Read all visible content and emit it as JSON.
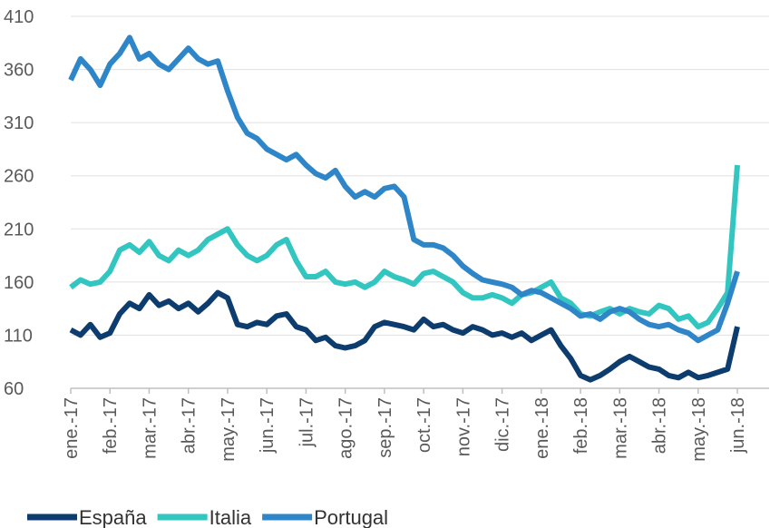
{
  "chart_data": {
    "type": "line",
    "categories": [
      "ene.-17",
      null,
      null,
      null,
      "feb.-17",
      null,
      null,
      null,
      "mar.-17",
      null,
      null,
      null,
      "abr.-17",
      null,
      null,
      null,
      "may.-17",
      null,
      null,
      null,
      "jun.-17",
      null,
      null,
      null,
      "jul.-17",
      null,
      null,
      null,
      "ago.-17",
      null,
      null,
      null,
      "sep.-17",
      null,
      null,
      null,
      "oct.-17",
      null,
      null,
      null,
      "nov.-17",
      null,
      null,
      null,
      "dic.-17",
      null,
      null,
      null,
      "ene.-18",
      null,
      null,
      null,
      "feb.-18",
      null,
      null,
      null,
      "mar.-18",
      null,
      null,
      null,
      "abr.-18",
      null,
      null,
      null,
      "may.-18",
      null,
      null,
      null,
      "jun.-18"
    ],
    "series": [
      {
        "name": "España",
        "color": "#0d3c6e",
        "values": [
          115,
          110,
          120,
          108,
          112,
          130,
          140,
          135,
          148,
          138,
          142,
          135,
          140,
          132,
          140,
          150,
          145,
          120,
          118,
          122,
          120,
          128,
          130,
          118,
          115,
          105,
          108,
          100,
          98,
          100,
          105,
          118,
          122,
          120,
          118,
          115,
          125,
          118,
          120,
          115,
          112,
          118,
          115,
          110,
          112,
          108,
          112,
          105,
          110,
          115,
          100,
          88,
          72,
          68,
          72,
          78,
          85,
          90,
          85,
          80,
          78,
          72,
          70,
          75,
          70,
          72,
          75,
          78,
          118
        ]
      },
      {
        "name": "Italia",
        "color": "#33c6c0",
        "values": [
          155,
          162,
          158,
          160,
          170,
          190,
          195,
          188,
          198,
          185,
          180,
          190,
          185,
          190,
          200,
          205,
          210,
          195,
          185,
          180,
          185,
          195,
          200,
          180,
          165,
          165,
          170,
          160,
          158,
          160,
          155,
          160,
          170,
          165,
          162,
          158,
          168,
          170,
          165,
          160,
          150,
          145,
          145,
          148,
          145,
          140,
          148,
          150,
          155,
          160,
          145,
          140,
          130,
          128,
          132,
          135,
          130,
          135,
          132,
          130,
          138,
          135,
          125,
          128,
          118,
          122,
          135,
          150,
          270
        ]
      },
      {
        "name": "Portugal",
        "color": "#2e86c9",
        "values": [
          350,
          370,
          360,
          345,
          365,
          375,
          390,
          370,
          375,
          365,
          360,
          370,
          380,
          370,
          365,
          368,
          340,
          315,
          300,
          295,
          285,
          280,
          275,
          280,
          270,
          262,
          258,
          265,
          250,
          240,
          245,
          240,
          248,
          250,
          240,
          200,
          195,
          195,
          192,
          185,
          175,
          168,
          162,
          160,
          158,
          155,
          148,
          152,
          150,
          145,
          140,
          135,
          128,
          130,
          125,
          132,
          135,
          132,
          125,
          120,
          118,
          120,
          115,
          112,
          105,
          110,
          115,
          140,
          170
        ]
      }
    ],
    "ylim": [
      60,
      410
    ],
    "yticks": [
      60,
      110,
      160,
      210,
      260,
      310,
      360,
      410
    ],
    "grid": true
  }
}
